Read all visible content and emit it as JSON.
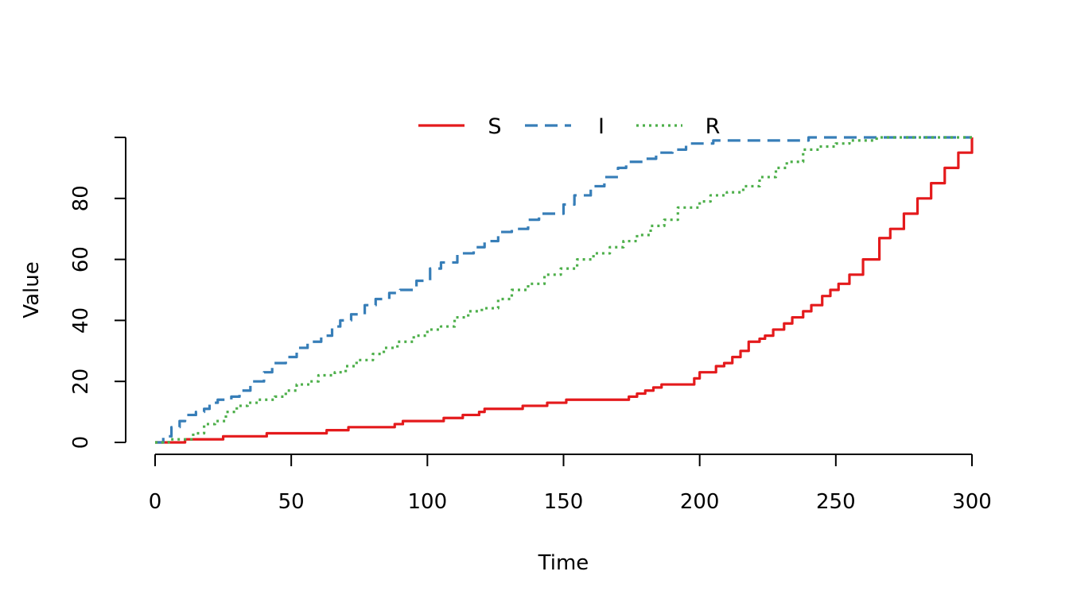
{
  "chart_data": {
    "type": "line",
    "title": "",
    "xlabel": "Time",
    "ylabel": "Value",
    "xlim": [
      0,
      300
    ],
    "ylim": [
      0,
      100
    ],
    "xticks": [
      0,
      50,
      100,
      150,
      200,
      250,
      300
    ],
    "yticks": [
      0,
      20,
      40,
      60,
      80
    ],
    "grid": false,
    "legend_position": "top-center",
    "series": [
      {
        "name": "S",
        "color": "#e41a1c",
        "dash": "solid",
        "points": [
          [
            0,
            0
          ],
          [
            10,
            0
          ],
          [
            11,
            1
          ],
          [
            24,
            1
          ],
          [
            25,
            2
          ],
          [
            40,
            2
          ],
          [
            41,
            3
          ],
          [
            62,
            3
          ],
          [
            63,
            4
          ],
          [
            70,
            4
          ],
          [
            71,
            5
          ],
          [
            86,
            5
          ],
          [
            88,
            6
          ],
          [
            91,
            7
          ],
          [
            105,
            7
          ],
          [
            106,
            8
          ],
          [
            112,
            8
          ],
          [
            113,
            9
          ],
          [
            117,
            9
          ],
          [
            119,
            10
          ],
          [
            121,
            11
          ],
          [
            134,
            11
          ],
          [
            135,
            12
          ],
          [
            142,
            12
          ],
          [
            144,
            13
          ],
          [
            149,
            13
          ],
          [
            151,
            14
          ],
          [
            172,
            14
          ],
          [
            174,
            15
          ],
          [
            177,
            16
          ],
          [
            180,
            17
          ],
          [
            183,
            18
          ],
          [
            186,
            19
          ],
          [
            196,
            19
          ],
          [
            198,
            21
          ],
          [
            200,
            23
          ],
          [
            204,
            23
          ],
          [
            206,
            25
          ],
          [
            209,
            26
          ],
          [
            212,
            28
          ],
          [
            215,
            30
          ],
          [
            218,
            33
          ],
          [
            222,
            34
          ],
          [
            224,
            35
          ],
          [
            227,
            37
          ],
          [
            231,
            39
          ],
          [
            234,
            41
          ],
          [
            238,
            43
          ],
          [
            241,
            45
          ],
          [
            245,
            48
          ],
          [
            248,
            50
          ],
          [
            251,
            52
          ],
          [
            255,
            55
          ],
          [
            260,
            60
          ],
          [
            266,
            67
          ],
          [
            270,
            70
          ],
          [
            275,
            75
          ],
          [
            280,
            80
          ],
          [
            285,
            85
          ],
          [
            290,
            90
          ],
          [
            295,
            95
          ],
          [
            300,
            100
          ]
        ]
      },
      {
        "name": "I",
        "color": "#377eb8",
        "dash": "dashed",
        "points": [
          [
            0,
            0
          ],
          [
            3,
            2
          ],
          [
            6,
            5
          ],
          [
            9,
            7
          ],
          [
            11,
            9
          ],
          [
            15,
            10
          ],
          [
            18,
            11
          ],
          [
            20,
            13
          ],
          [
            23,
            14
          ],
          [
            28,
            15
          ],
          [
            31,
            17
          ],
          [
            35,
            20
          ],
          [
            40,
            23
          ],
          [
            43,
            26
          ],
          [
            48,
            28
          ],
          [
            52,
            31
          ],
          [
            56,
            33
          ],
          [
            61,
            35
          ],
          [
            65,
            38
          ],
          [
            68,
            40
          ],
          [
            72,
            42
          ],
          [
            77,
            45
          ],
          [
            81,
            47
          ],
          [
            86,
            49
          ],
          [
            90,
            50
          ],
          [
            96,
            53
          ],
          [
            101,
            57
          ],
          [
            105,
            59
          ],
          [
            111,
            62
          ],
          [
            117,
            64
          ],
          [
            121,
            66
          ],
          [
            126,
            69
          ],
          [
            131,
            70
          ],
          [
            137,
            73
          ],
          [
            141,
            75
          ],
          [
            150,
            78
          ],
          [
            154,
            81
          ],
          [
            160,
            84
          ],
          [
            165,
            87
          ],
          [
            170,
            90
          ],
          [
            173,
            92
          ],
          [
            180,
            93
          ],
          [
            184,
            95
          ],
          [
            190,
            96
          ],
          [
            195,
            98
          ],
          [
            205,
            99
          ],
          [
            220,
            99
          ],
          [
            240,
            100
          ],
          [
            300,
            100
          ]
        ]
      },
      {
        "name": "R",
        "color": "#4daf4a",
        "dash": "dotted",
        "points": [
          [
            0,
            0
          ],
          [
            5,
            1
          ],
          [
            10,
            1
          ],
          [
            14,
            3
          ],
          [
            18,
            6
          ],
          [
            22,
            7
          ],
          [
            26,
            10
          ],
          [
            30,
            12
          ],
          [
            34,
            13
          ],
          [
            38,
            14
          ],
          [
            44,
            15
          ],
          [
            48,
            17
          ],
          [
            52,
            19
          ],
          [
            57,
            20
          ],
          [
            60,
            22
          ],
          [
            66,
            23
          ],
          [
            70,
            25
          ],
          [
            74,
            27
          ],
          [
            80,
            29
          ],
          [
            84,
            31
          ],
          [
            89,
            33
          ],
          [
            95,
            35
          ],
          [
            100,
            37
          ],
          [
            105,
            38
          ],
          [
            110,
            41
          ],
          [
            115,
            43
          ],
          [
            120,
            44
          ],
          [
            126,
            47
          ],
          [
            131,
            50
          ],
          [
            137,
            52
          ],
          [
            143,
            55
          ],
          [
            149,
            57
          ],
          [
            155,
            60
          ],
          [
            161,
            62
          ],
          [
            167,
            64
          ],
          [
            172,
            66
          ],
          [
            177,
            68
          ],
          [
            182,
            71
          ],
          [
            187,
            73
          ],
          [
            192,
            77
          ],
          [
            200,
            79
          ],
          [
            204,
            81
          ],
          [
            210,
            82
          ],
          [
            216,
            84
          ],
          [
            222,
            87
          ],
          [
            228,
            90
          ],
          [
            232,
            92
          ],
          [
            238,
            96
          ],
          [
            244,
            97
          ],
          [
            250,
            98
          ],
          [
            255,
            99
          ],
          [
            265,
            100
          ],
          [
            300,
            100
          ]
        ]
      }
    ]
  }
}
